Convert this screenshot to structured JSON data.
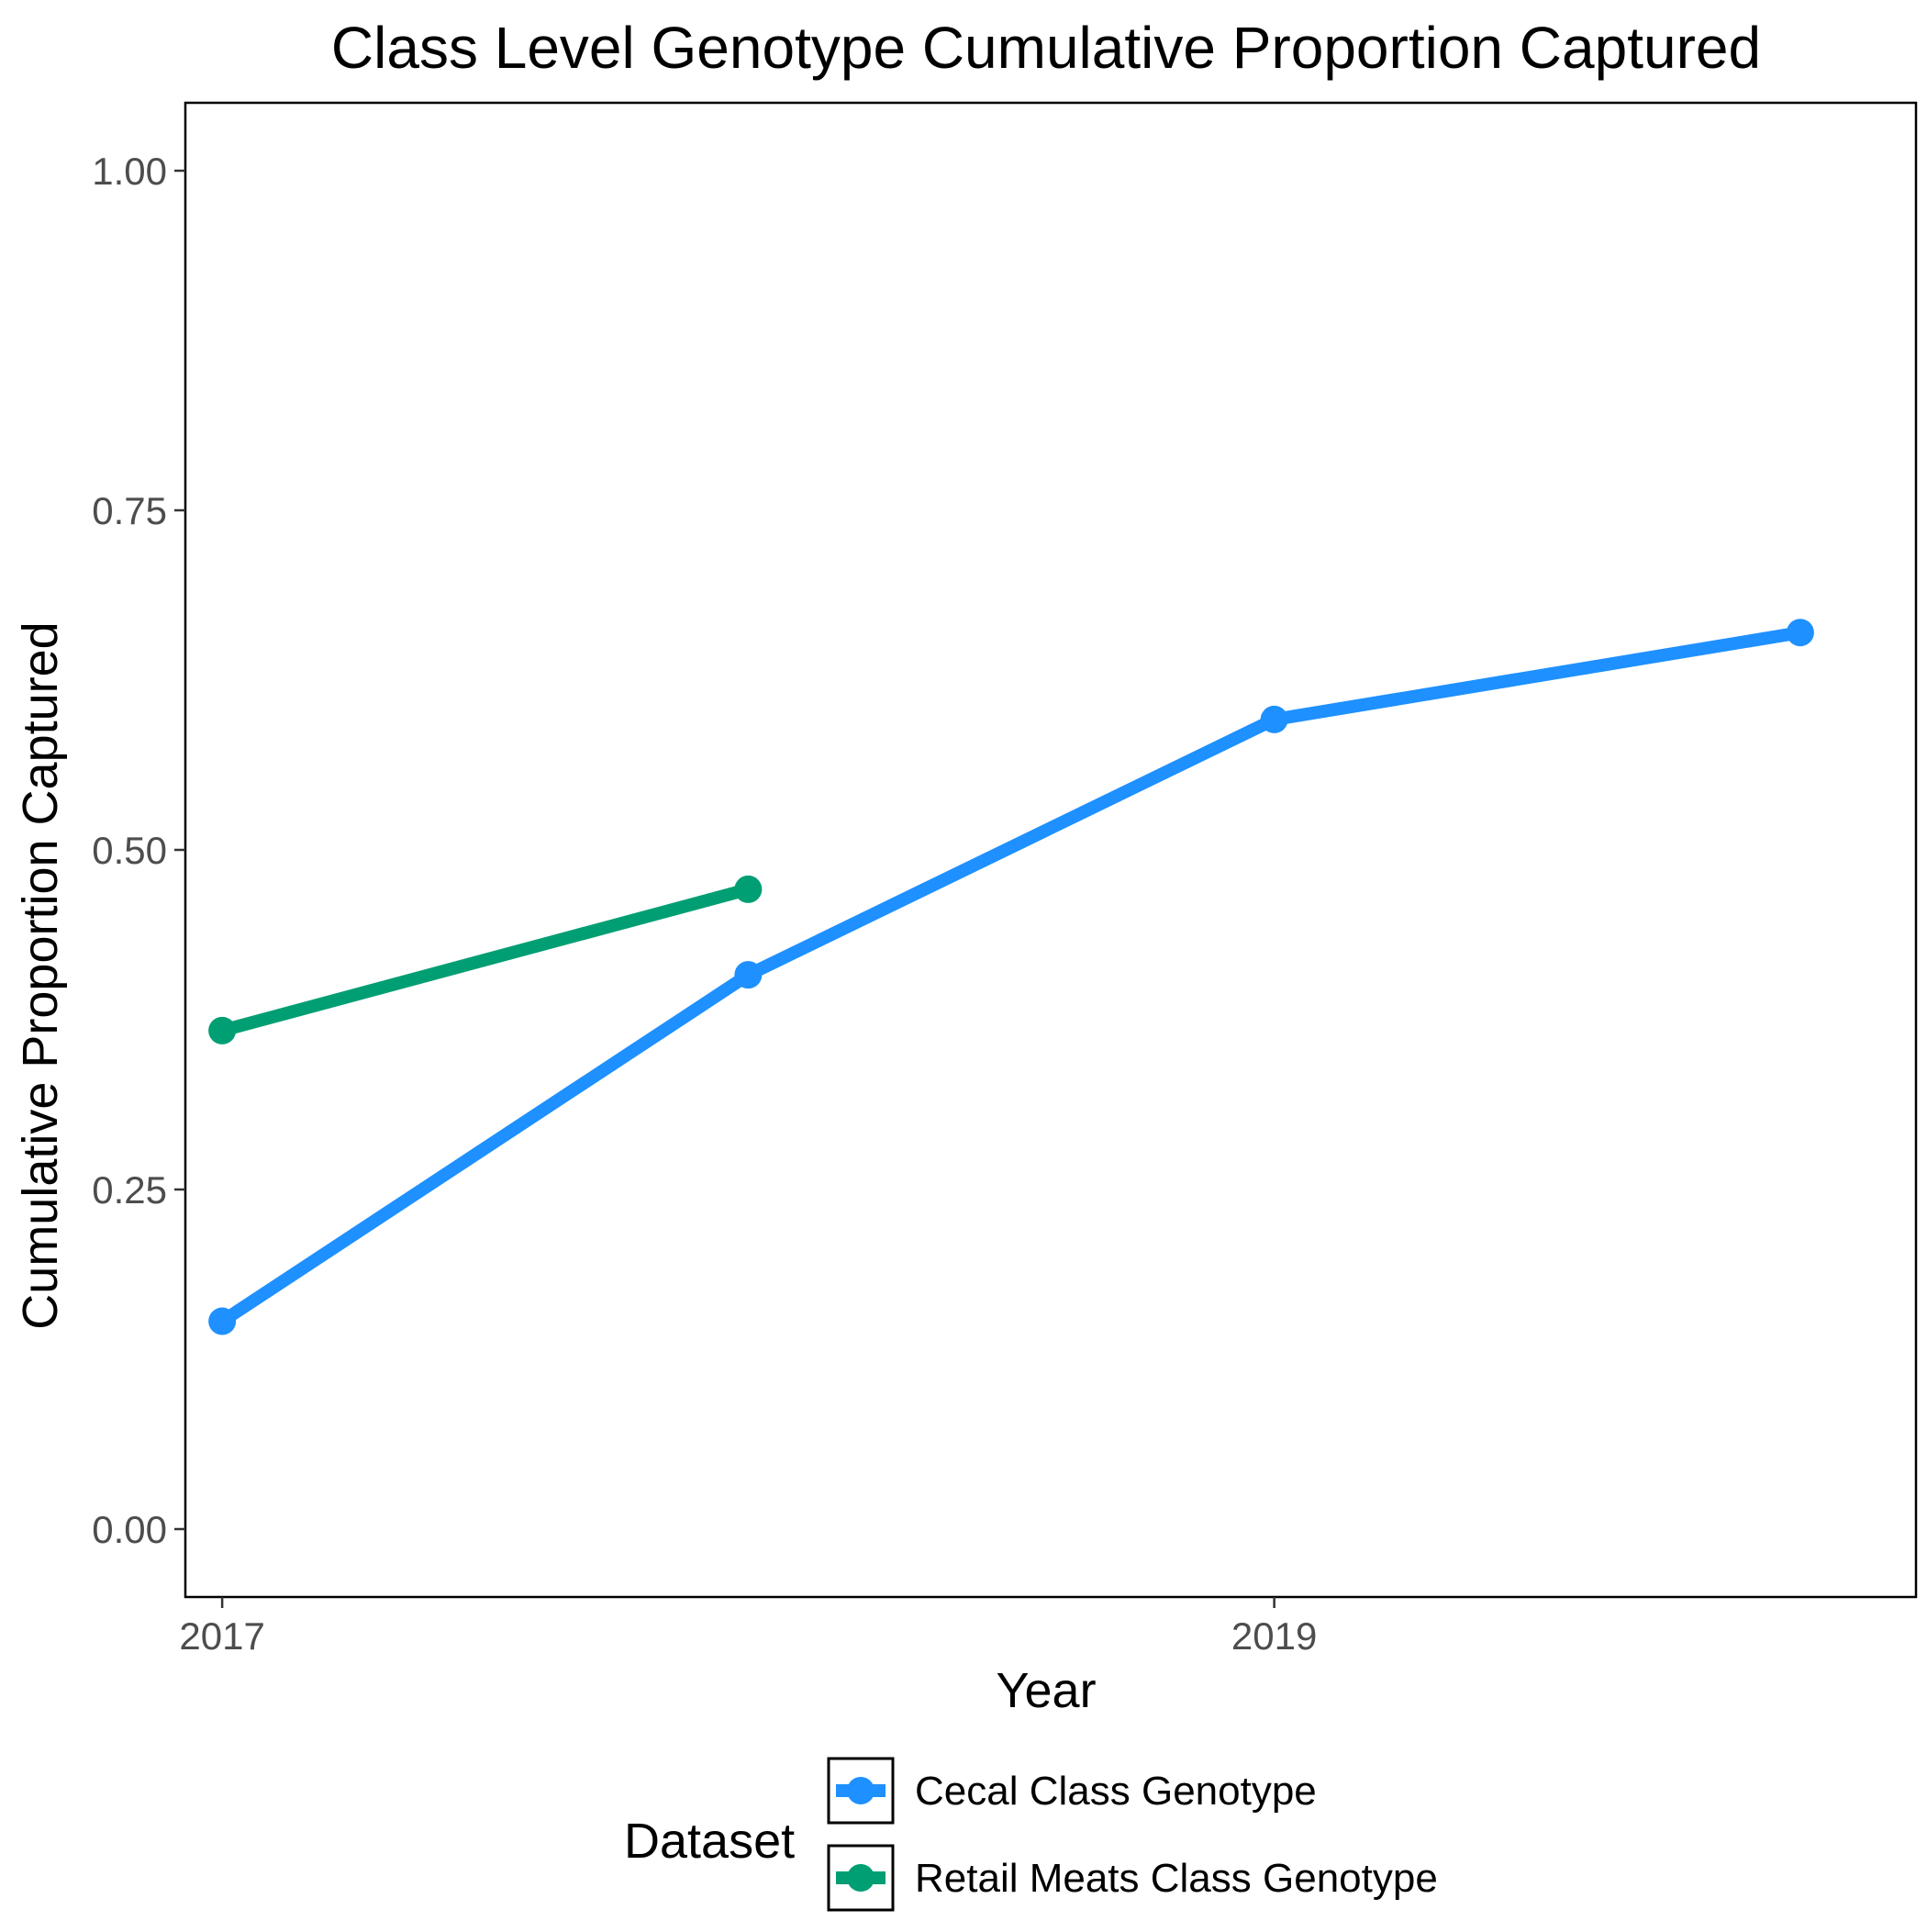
{
  "chart_data": {
    "type": "line",
    "title": "Class Level Genotype Cumulative Proportion Captured",
    "xlabel": "Year",
    "ylabel": "Cumulative Proportion Captured",
    "xlim": [
      2016.93,
      2020.22
    ],
    "ylim": [
      -0.05,
      1.05
    ],
    "x_ticks": [
      2017,
      2019
    ],
    "x_tick_labels": [
      "2017",
      "2019"
    ],
    "y_ticks": [
      0,
      0.25,
      0.5,
      0.75,
      1
    ],
    "y_tick_labels": [
      "0.00",
      "0.25",
      "0.50",
      "0.75",
      "1.00"
    ],
    "grid": false,
    "legend_position": "bottom",
    "legend_title": "Dataset",
    "series": [
      {
        "name": "Cecal Class Genotype",
        "color": "#1e90ff",
        "points": [
          {
            "x": 2017,
            "y": 0.153
          },
          {
            "x": 2018,
            "y": 0.408
          },
          {
            "x": 2019,
            "y": 0.596
          },
          {
            "x": 2020,
            "y": 0.66
          }
        ]
      },
      {
        "name": "Retail Meats Class Genotype",
        "color": "#009e73",
        "points": [
          {
            "x": 2017,
            "y": 0.367
          },
          {
            "x": 2018,
            "y": 0.471
          }
        ]
      }
    ]
  }
}
